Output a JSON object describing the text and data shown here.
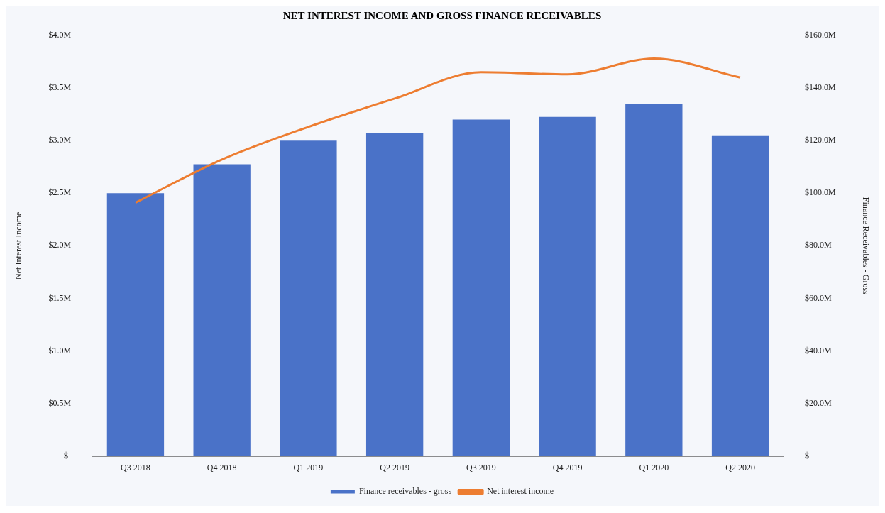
{
  "chart_data": {
    "type": "bar",
    "title": "NET INTEREST INCOME AND GROSS FINANCE RECEIVABLES",
    "ylabel": "Net Interest Income",
    "y2label": "Finance Receivables - Gross",
    "categories": [
      "Q3 2018",
      "Q4 2018",
      "Q1 2019",
      "Q2 2019",
      "Q3 2019",
      "Q4 2019",
      "Q1 2020",
      "Q2 2020"
    ],
    "series": [
      {
        "name": "Finance receivables - gross",
        "axis": "y2",
        "color": "#4a72c8",
        "values": [
          100,
          111,
          120,
          123,
          128,
          129,
          134,
          122
        ]
      },
      {
        "name": "Net interest income",
        "type": "line",
        "axis": "y",
        "color": "#ed7d31",
        "values": [
          2.41,
          2.82,
          3.13,
          3.4,
          3.65,
          3.63,
          3.78,
          3.6
        ]
      }
    ],
    "ylim": [
      0,
      4
    ],
    "yticks": [
      {
        "value": 0,
        "label": "$-"
      },
      {
        "value": 0.5,
        "label": "$0.5M"
      },
      {
        "value": 1,
        "label": "$1.0M"
      },
      {
        "value": 1.5,
        "label": "$1.5M"
      },
      {
        "value": 2,
        "label": "$2.0M"
      },
      {
        "value": 2.5,
        "label": "$2.5M"
      },
      {
        "value": 3,
        "label": "$3.0M"
      },
      {
        "value": 3.5,
        "label": "$3.5M"
      },
      {
        "value": 4,
        "label": "$4.0M"
      }
    ],
    "y2lim": [
      0,
      160
    ],
    "y2ticks": [
      {
        "value": 0,
        "label": "$-"
      },
      {
        "value": 20,
        "label": "$20.0M"
      },
      {
        "value": 40,
        "label": "$40.0M"
      },
      {
        "value": 60,
        "label": "$60.0M"
      },
      {
        "value": 80,
        "label": "$80.0M"
      },
      {
        "value": 100,
        "label": "$100.0M"
      },
      {
        "value": 120,
        "label": "$120.0M"
      },
      {
        "value": 140,
        "label": "$140.0M"
      },
      {
        "value": 160,
        "label": "$160.0M"
      }
    ],
    "grid": false,
    "legend": "bottom",
    "marker": "none",
    "line_style": "solid"
  }
}
